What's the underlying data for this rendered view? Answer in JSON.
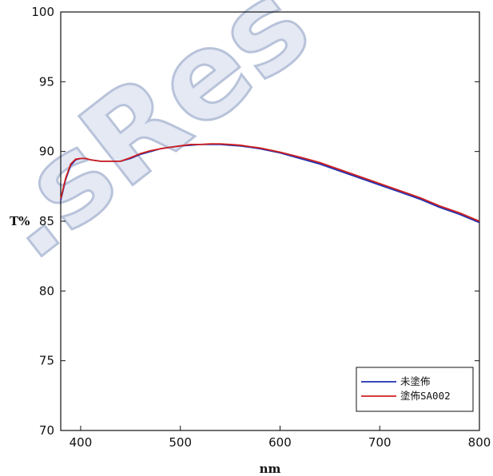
{
  "watermark": {
    "text": ".sRes"
  },
  "chart_data": {
    "type": "line",
    "title": "",
    "xlabel": "nm",
    "ylabel": "T%",
    "xlim": [
      380,
      800
    ],
    "ylim": [
      70,
      100
    ],
    "xticks": [
      400,
      500,
      600,
      700,
      800
    ],
    "yticks": [
      70,
      75,
      80,
      85,
      90,
      95,
      100
    ],
    "grid": false,
    "legend_position": "bottom-right",
    "series": [
      {
        "name": "未塗佈",
        "color": "#1f2fb0",
        "x": [
          380,
          385,
          390,
          395,
          400,
          405,
          410,
          420,
          430,
          440,
          450,
          460,
          470,
          480,
          490,
          500,
          510,
          520,
          530,
          540,
          550,
          560,
          570,
          580,
          600,
          620,
          640,
          660,
          680,
          700,
          720,
          740,
          760,
          780,
          800
        ],
        "y": [
          86.5,
          88.0,
          89.0,
          89.4,
          89.5,
          89.5,
          89.4,
          89.3,
          89.3,
          89.3,
          89.5,
          89.8,
          90.0,
          90.2,
          90.3,
          90.4,
          90.45,
          90.5,
          90.5,
          90.5,
          90.45,
          90.4,
          90.3,
          90.2,
          89.9,
          89.5,
          89.1,
          88.6,
          88.1,
          87.6,
          87.1,
          86.6,
          86.0,
          85.5,
          84.9
        ]
      },
      {
        "name": "塗佈SA002",
        "color": "#d02020",
        "x": [
          380,
          385,
          390,
          395,
          400,
          405,
          410,
          420,
          430,
          440,
          450,
          460,
          470,
          480,
          490,
          500,
          510,
          520,
          530,
          540,
          550,
          560,
          570,
          580,
          600,
          620,
          640,
          660,
          680,
          700,
          720,
          740,
          760,
          780,
          800
        ],
        "y": [
          86.6,
          88.1,
          89.1,
          89.45,
          89.5,
          89.5,
          89.4,
          89.3,
          89.3,
          89.3,
          89.55,
          89.85,
          90.05,
          90.2,
          90.3,
          90.4,
          90.5,
          90.5,
          90.55,
          90.55,
          90.5,
          90.45,
          90.35,
          90.25,
          89.95,
          89.6,
          89.2,
          88.7,
          88.2,
          87.7,
          87.2,
          86.7,
          86.1,
          85.6,
          85.0
        ]
      }
    ]
  }
}
